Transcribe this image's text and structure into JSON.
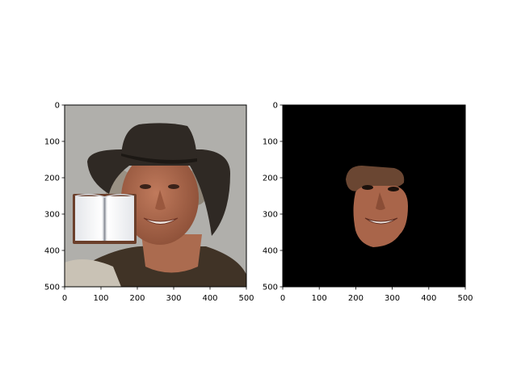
{
  "figure": {
    "background": "#ffffff"
  },
  "chart_data": [
    {
      "type": "image",
      "title": "",
      "content": "photo",
      "xlim": [
        0,
        500
      ],
      "ylim": [
        500,
        0
      ],
      "xticks": [
        0,
        100,
        200,
        300,
        400,
        500
      ],
      "yticks": [
        0,
        100,
        200,
        300,
        400,
        500
      ],
      "xtick_labels": [
        "0",
        "100",
        "200",
        "300",
        "400",
        "500"
      ],
      "ytick_labels": [
        "0",
        "100",
        "200",
        "300",
        "400",
        "500"
      ],
      "colors": {
        "background": "#b0afab",
        "hat": "#2f2924",
        "skin": "#ab6b4f",
        "shirt": "#403326",
        "book": "#f3f3f5",
        "book_edge": "#6b3f2b"
      },
      "icons": [
        "open-book-icon"
      ]
    },
    {
      "type": "image",
      "title": "",
      "content": "masked-face",
      "xlim": [
        0,
        500
      ],
      "ylim": [
        500,
        0
      ],
      "xticks": [
        0,
        100,
        200,
        300,
        400,
        500
      ],
      "yticks": [
        0,
        100,
        200,
        300,
        400,
        500
      ],
      "xtick_labels": [
        "0",
        "100",
        "200",
        "300",
        "400",
        "500"
      ],
      "ytick_labels": [
        "0",
        "100",
        "200",
        "300",
        "400",
        "500"
      ],
      "colors": {
        "background": "#000000",
        "skin": "#a9654a",
        "hair": "#6a4632"
      },
      "icons": []
    }
  ]
}
